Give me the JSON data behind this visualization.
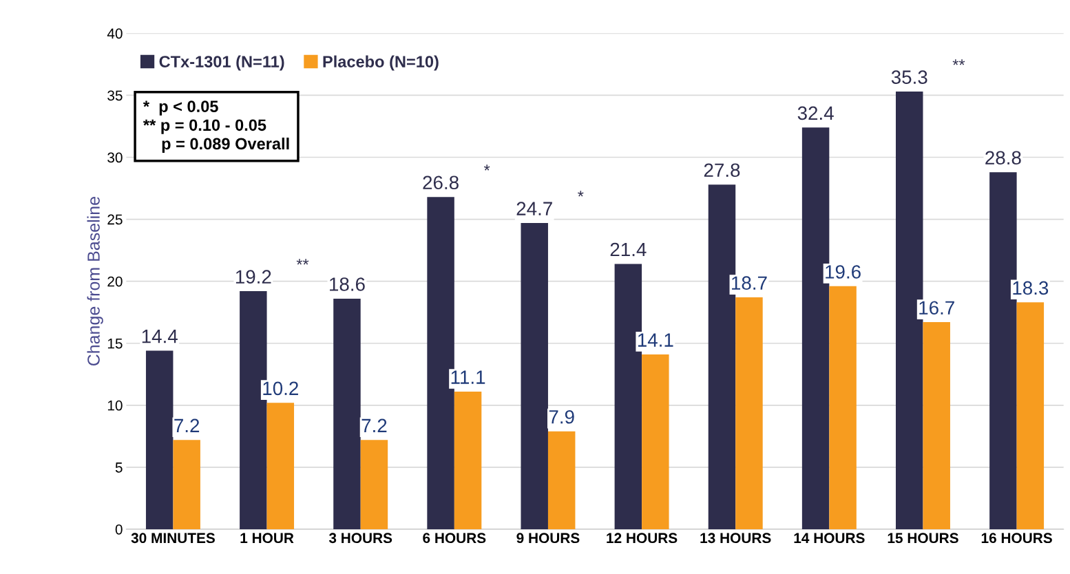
{
  "chart_data": {
    "type": "bar",
    "ylabel": "Change from Baseline",
    "categories": [
      "30 MINUTES",
      "1 HOUR",
      "3 HOURS",
      "6 HOURS",
      "9 HOURS",
      "12 HOURS",
      "13 HOURS",
      "14 HOURS",
      "15 HOURS",
      "16 HOURS"
    ],
    "series": [
      {
        "name": "CTx-1301 (N=11)",
        "color": "#2e2d4c",
        "values": [
          14.4,
          19.2,
          18.6,
          26.8,
          24.7,
          21.4,
          27.8,
          32.4,
          35.3,
          28.8
        ]
      },
      {
        "name": "Placebo (N=10)",
        "color": "#f79c1f",
        "values": [
          7.2,
          10.2,
          7.2,
          11.1,
          7.9,
          14.1,
          18.7,
          19.6,
          16.7,
          18.3
        ]
      }
    ],
    "data_labels": true,
    "ylim": [
      0,
      40
    ],
    "yticks": [
      0,
      5,
      10,
      15,
      20,
      25,
      30,
      35,
      40
    ],
    "grid": "y",
    "legend": "top left",
    "annotations": [
      "*  p < 0.05\n** p = 0.10 - 0.05\n    p = 0.089 Overall",
      {
        "text": "**",
        "x": "1 HOUR",
        "y": 19.2
      },
      {
        "text": "*",
        "x": "6 HOURS",
        "y": 26.8
      },
      {
        "text": "*",
        "x": "9 HOURS",
        "y": 24.7
      },
      {
        "text": "**",
        "x": "15 HOURS",
        "y": 35.3
      }
    ]
  }
}
